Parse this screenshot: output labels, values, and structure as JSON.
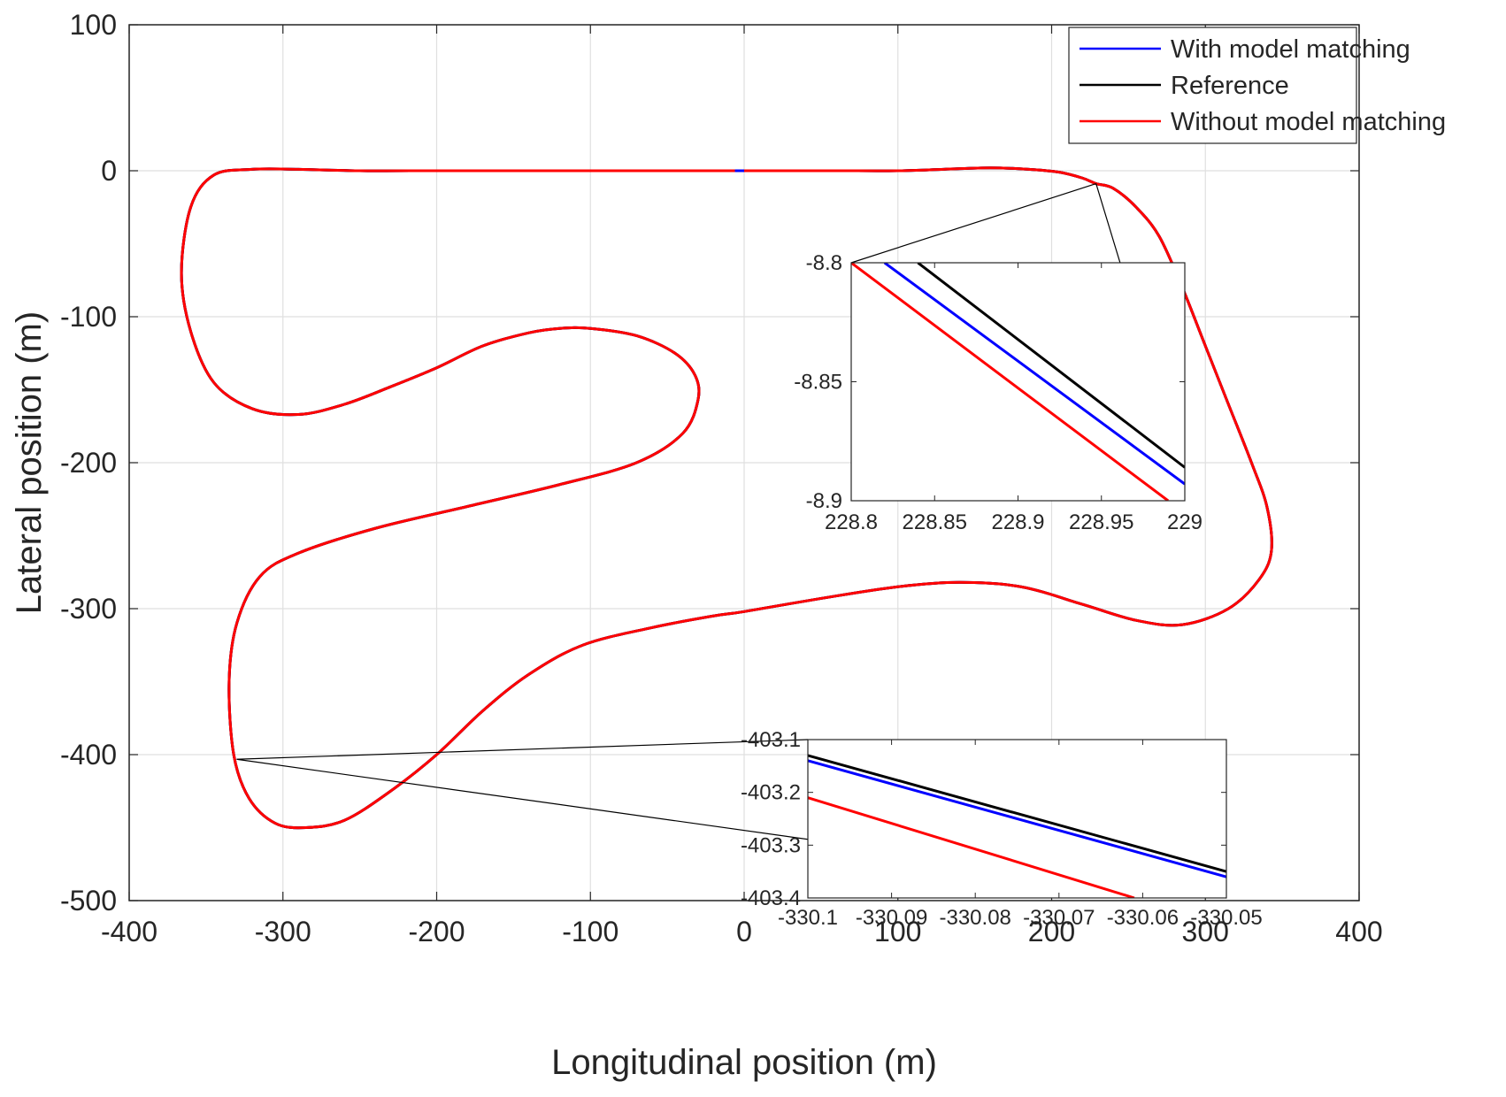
{
  "chart_data": {
    "type": "line",
    "xlabel": "Longitudinal position (m)",
    "ylabel": "Lateral position (m)",
    "xlim": [
      -400,
      400
    ],
    "ylim": [
      -500,
      100
    ],
    "xticks": [
      -400,
      -300,
      -200,
      -100,
      0,
      100,
      200,
      300,
      400
    ],
    "yticks": [
      100,
      0,
      -100,
      -200,
      -300,
      -400,
      -500
    ],
    "xtick_labels": [
      "-400",
      "-300",
      "-200",
      "-100",
      "0",
      "100",
      "200",
      "300",
      "400"
    ],
    "ytick_labels": [
      "100",
      "0",
      "-100",
      "-200",
      "-300",
      "-400",
      "-500"
    ],
    "grid": true,
    "legend_position": "top-right",
    "series": [
      {
        "name": "With model matching",
        "color": "#0000ff"
      },
      {
        "name": "Reference",
        "color": "#000000"
      },
      {
        "name": "Without model matching",
        "color": "#ff0000"
      }
    ],
    "track": {
      "x": [
        -5,
        -50,
        -100,
        -150,
        -200,
        -250,
        -290,
        -320,
        -345,
        -360,
        -366,
        -360,
        -345,
        -320,
        -290,
        -260,
        -230,
        -200,
        -170,
        -140,
        -120,
        -100,
        -70,
        -45,
        -32,
        -30,
        -40,
        -70,
        -120,
        -180,
        -240,
        -290,
        -315,
        -330,
        -335,
        -332,
        -322,
        -305,
        -285,
        -260,
        -230,
        -200,
        -170,
        -140,
        -105,
        -60,
        -20,
        0,
        50,
        100,
        140,
        180,
        220,
        255,
        285,
        315,
        335,
        343,
        340,
        330,
        315,
        300,
        285,
        270,
        255,
        240,
        228.9,
        220,
        205,
        185,
        160,
        130,
        100,
        60,
        20,
        -5
      ],
      "y": [
        0,
        0,
        0,
        0,
        0,
        0,
        1,
        1,
        -3,
        -25,
        -70,
        -110,
        -145,
        -163,
        -167,
        -160,
        -148,
        -135,
        -120,
        -111,
        -108,
        -108,
        -113,
        -125,
        -140,
        -157,
        -180,
        -200,
        -215,
        -230,
        -245,
        -262,
        -278,
        -310,
        -350,
        -400,
        -430,
        -447,
        -450,
        -445,
        -425,
        -400,
        -370,
        -345,
        -325,
        -313,
        -305,
        -302,
        -293,
        -285,
        -282,
        -285,
        -297,
        -308,
        -311,
        -300,
        -280,
        -260,
        -230,
        -200,
        -160,
        -120,
        -80,
        -45,
        -25,
        -12,
        -8.85,
        -5,
        -1,
        1,
        2,
        1,
        0,
        0,
        0,
        0
      ]
    },
    "insets": [
      {
        "xlim": [
          228.8,
          229
        ],
        "ylim": [
          -8.9,
          -8.8
        ],
        "xtick_labels": [
          "228.8",
          "228.85",
          "228.9",
          "228.95",
          "229"
        ],
        "ytick_labels": [
          "-8.8",
          "-8.85",
          "-8.9"
        ],
        "zoom_point": [
          228.9,
          -8.85
        ],
        "lines": [
          {
            "series": "Reference",
            "x": [
              228.84,
              229
            ],
            "y": [
              -8.8,
              -8.886
            ]
          },
          {
            "series": "With model matching",
            "x": [
              228.82,
              229
            ],
            "y": [
              -8.8,
              -8.893
            ]
          },
          {
            "series": "Without model matching",
            "x": [
              228.8,
              228.99
            ],
            "y": [
              -8.8,
              -8.9
            ]
          }
        ]
      },
      {
        "xlim": [
          -330.1,
          -330.05
        ],
        "ylim": [
          -403.4,
          -403.1
        ],
        "xtick_labels": [
          "-330.1",
          "-330.09",
          "-330.08",
          "-330.07",
          "-330.06",
          "-330.05"
        ],
        "ytick_labels": [
          "-403.1",
          "-403.2",
          "-403.3",
          "-403.4"
        ],
        "zoom_point": [
          -330.08,
          -403.2
        ],
        "lines": [
          {
            "series": "Reference",
            "x": [
              -330.1,
              -330.05
            ],
            "y": [
              -403.13,
              -403.35
            ]
          },
          {
            "series": "With model matching",
            "x": [
              -330.1,
              -330.05
            ],
            "y": [
              -403.14,
              -403.36
            ]
          },
          {
            "series": "Without model matching",
            "x": [
              -330.1,
              -330.061
            ],
            "y": [
              -403.21,
              -403.4
            ]
          }
        ]
      }
    ]
  }
}
